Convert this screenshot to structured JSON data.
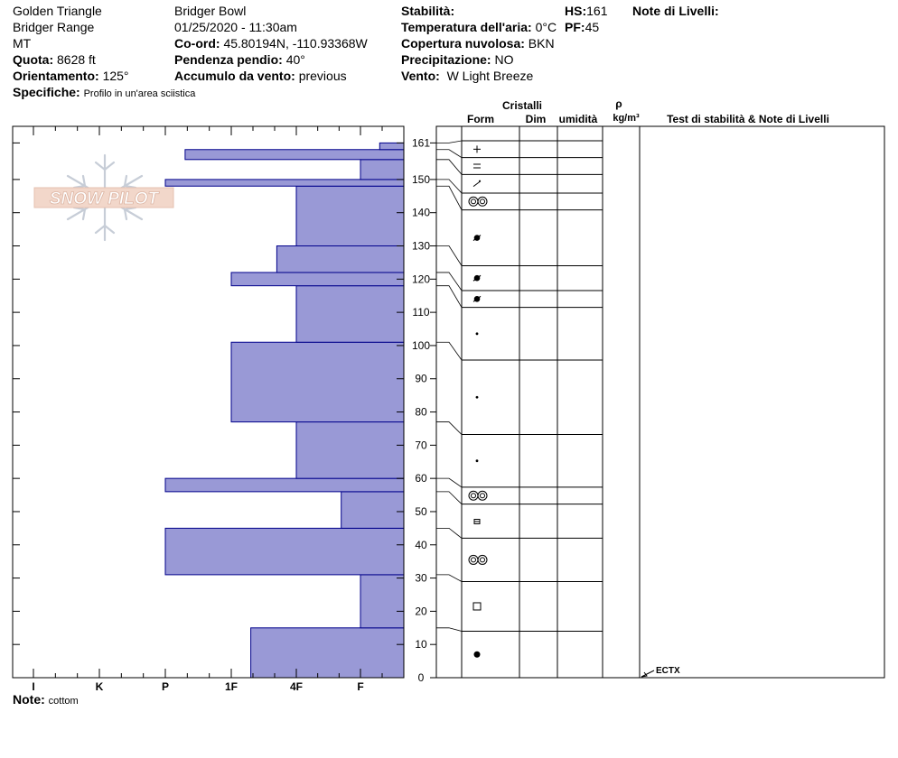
{
  "header": {
    "location": "Golden Triangle",
    "range": "Bridger Range",
    "state": "MT",
    "elevation_label": "Quota:",
    "elevation_value": "8628 ft",
    "aspect_label": "Orientamento:",
    "aspect_value": "125°",
    "specifics_label": "Specifiche:",
    "specifics_value": "Profilo in un'area sciistica",
    "area": "Bridger Bowl",
    "datetime": "01/25/2020 - 11:30am",
    "coord_label": "Co-ord:",
    "coord_value": "45.80194N, -110.93368W",
    "slope_label": "Pendenza pendio:",
    "slope_value": "40°",
    "wind_loading_label": "Accumulo da vento:",
    "wind_loading_value": "previous",
    "stability_label": "Stabilità:",
    "air_temp_label": "Temperatura dell'aria:",
    "air_temp_value": "0°C",
    "cloud_label": "Copertura nuvolosa:",
    "cloud_value": "BKN",
    "precip_label": "Precipitazione:",
    "precip_value": "NO",
    "wind_label": "Vento:",
    "wind_value": "W Light Breeze",
    "hs_label": "HS:",
    "hs_value": "161",
    "pf_label": "PF:",
    "pf_value": "45",
    "layer_notes_label": "Note di Livelli:"
  },
  "footer": {
    "note_label": "Note:",
    "note_value": "cottom"
  },
  "logo_text": "SNOW PILOT",
  "columns": {
    "crystals": "Cristalli",
    "form": "Form",
    "size": "Dim",
    "moisture": "umidità",
    "density_symbol": "ρ",
    "density_unit": "kg/m³",
    "tests_notes": "Test di stabilità & Note di Livelli"
  },
  "colors": {
    "bar_fill": "#9999d6",
    "bar_stroke": "#00008b"
  },
  "chart_data": {
    "type": "bar",
    "orientation": "horizontal",
    "x_categories": [
      "I",
      "K",
      "P",
      "1F",
      "4F",
      "F"
    ],
    "y_axis_ticks": [
      0,
      10,
      20,
      30,
      40,
      50,
      60,
      70,
      80,
      90,
      100,
      110,
      120,
      130,
      140,
      150,
      161
    ],
    "ylim": [
      0,
      166
    ],
    "layers": [
      {
        "bottom": 0,
        "top": 15,
        "hardness_index": 3.3,
        "form_symbol": "dot-large"
      },
      {
        "bottom": 15,
        "top": 31,
        "hardness_index": 5.0,
        "form_symbol": "square"
      },
      {
        "bottom": 31,
        "top": 45,
        "hardness_index": 2.0,
        "form_symbol": "double-circle"
      },
      {
        "bottom": 45,
        "top": 56,
        "hardness_index": 4.7,
        "form_symbol": "hollow-cup"
      },
      {
        "bottom": 56,
        "top": 60,
        "hardness_index": 2.0,
        "form_symbol": "double-circle"
      },
      {
        "bottom": 60,
        "top": 77,
        "hardness_index": 4.0,
        "form_symbol": "dot-small"
      },
      {
        "bottom": 77,
        "top": 101,
        "hardness_index": 3.0,
        "form_symbol": "dot-small"
      },
      {
        "bottom": 101,
        "top": 118,
        "hardness_index": 4.0,
        "form_symbol": "dot-small"
      },
      {
        "bottom": 118,
        "top": 122,
        "hardness_index": 3.0,
        "form_symbol": "rounded-faceted"
      },
      {
        "bottom": 122,
        "top": 130,
        "hardness_index": 3.7,
        "form_symbol": "rounded-faceted"
      },
      {
        "bottom": 130,
        "top": 148,
        "hardness_index": 4.0,
        "form_symbol": "rounded-faceted"
      },
      {
        "bottom": 148,
        "top": 150,
        "hardness_index": 2.0,
        "form_symbol": "double-circle"
      },
      {
        "bottom": 150,
        "top": 156,
        "hardness_index": 5.0,
        "form_symbol": "decomposed"
      },
      {
        "bottom": 156,
        "top": 159,
        "hardness_index": 2.3,
        "form_symbol": "equals"
      },
      {
        "bottom": 159,
        "top": 161,
        "hardness_index": 5.3,
        "form_symbol": "plus"
      }
    ],
    "tests": [
      {
        "depth": 0,
        "label": "ECTX"
      }
    ]
  }
}
